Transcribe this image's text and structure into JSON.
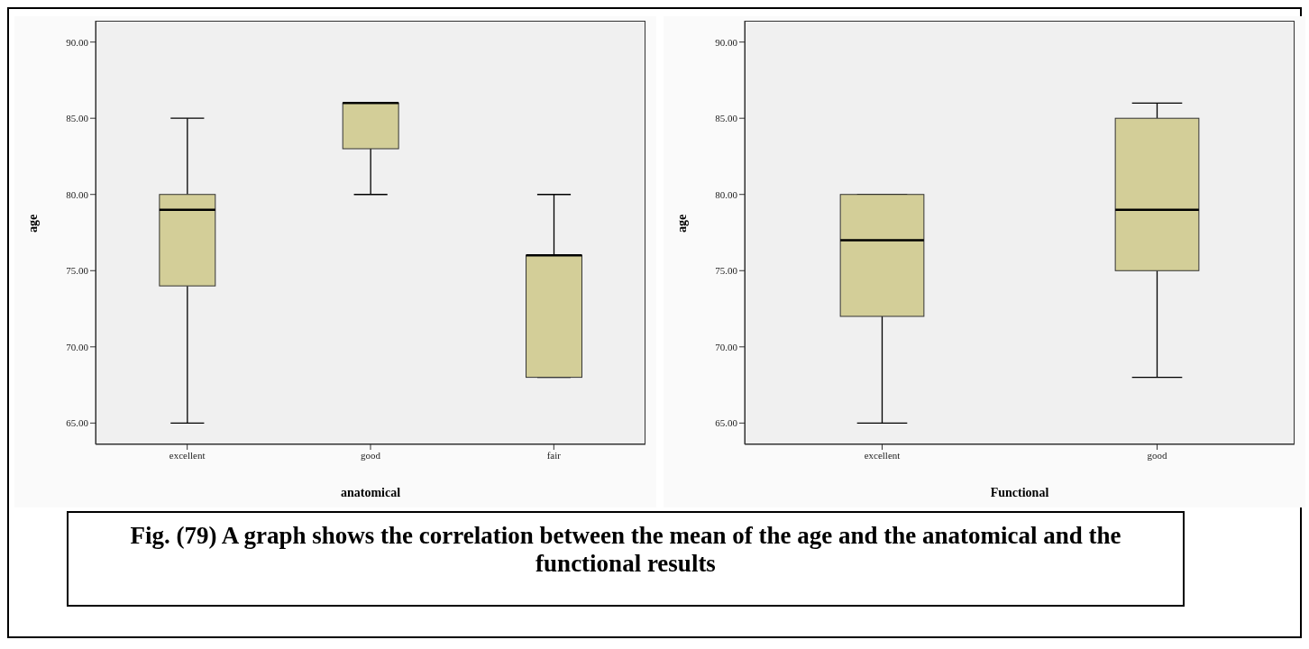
{
  "chart_data": [
    {
      "type": "box",
      "xlabel": "anatomical",
      "ylabel": "age",
      "categories": [
        "excellent",
        "good",
        "fair"
      ],
      "color": "#d3ce98",
      "boxes": [
        {
          "low": 65,
          "q1": 74,
          "median": 79,
          "q3": 80,
          "high": 85
        },
        {
          "low": 80,
          "q1": 83,
          "median": 86,
          "q3": 86,
          "high": 86
        },
        {
          "low": 68,
          "q1": 68,
          "median": 76,
          "q3": 76,
          "high": 80
        }
      ],
      "ylim": [
        63.6,
        91.4
      ],
      "yticks": [
        {
          "value": 65,
          "label": "65.00"
        },
        {
          "value": 70,
          "label": "70.00"
        },
        {
          "value": 75,
          "label": "75.00"
        },
        {
          "value": 80,
          "label": "80.00"
        },
        {
          "value": 85,
          "label": "85.00"
        },
        {
          "value": 90,
          "label": "90.00"
        }
      ],
      "grid": false,
      "legend": false,
      "annotations": [
        "Fig. (79) A graph shows the correlation between the mean of the age and the anatomical and the functional results"
      ]
    },
    {
      "type": "box",
      "xlabel": "Functional",
      "ylabel": "age",
      "categories": [
        "excellent",
        "good"
      ],
      "color": "#d3ce98",
      "boxes": [
        {
          "low": 65,
          "q1": 72,
          "median": 77,
          "q3": 80,
          "high": 80
        },
        {
          "low": 68,
          "q1": 75,
          "median": 79,
          "q3": 85,
          "high": 86
        }
      ],
      "ylim": [
        63.6,
        91.4
      ],
      "yticks": [
        {
          "value": 65,
          "label": "65.00"
        },
        {
          "value": 70,
          "label": "70.00"
        },
        {
          "value": 75,
          "label": "75.00"
        },
        {
          "value": 80,
          "label": "80.00"
        },
        {
          "value": 85,
          "label": "85.00"
        },
        {
          "value": 90,
          "label": "90.00"
        }
      ],
      "grid": false,
      "legend": false
    }
  ]
}
